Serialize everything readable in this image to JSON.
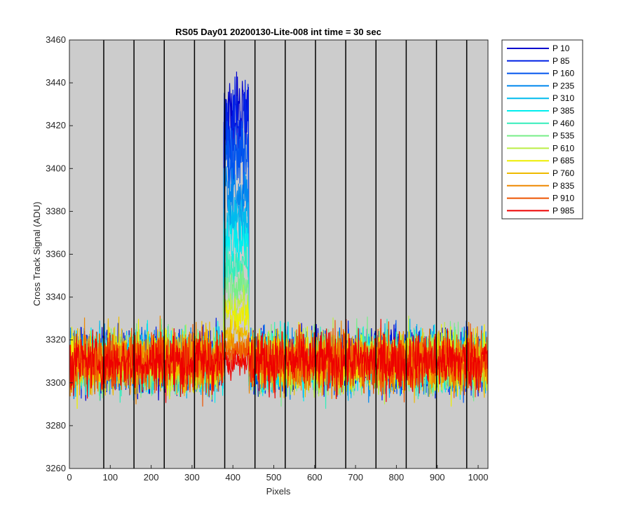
{
  "chart_data": {
    "type": "line",
    "title": "RS05 Day01 20200130-Lite-008 int time = 30 sec",
    "xlabel": "Pixels",
    "ylabel": "Cross Track Signal (ADU)",
    "xlim": [
      0,
      1024
    ],
    "ylim": [
      3260,
      3460
    ],
    "xticks": [
      0,
      100,
      200,
      300,
      400,
      500,
      600,
      700,
      800,
      900,
      1000
    ],
    "yticks": [
      3260,
      3280,
      3300,
      3320,
      3340,
      3360,
      3380,
      3400,
      3420,
      3440,
      3460
    ],
    "background": "#cccccc",
    "grid": false,
    "legend_position": "outside-top-right",
    "column_boundaries": [
      84,
      158,
      232,
      306,
      380,
      454,
      528,
      602,
      676,
      750,
      824,
      898,
      972
    ],
    "baseline_mean": 3310,
    "noise_range": [
      3276,
      3346
    ],
    "peak_region": [
      378,
      438
    ],
    "series": [
      {
        "name": "P 10",
        "color": "#0000cd",
        "peak": 3442
      },
      {
        "name": "P 85",
        "color": "#0022e6",
        "peak": 3440
      },
      {
        "name": "P 160",
        "color": "#0055ee",
        "peak": 3420
      },
      {
        "name": "P 235",
        "color": "#0088ee",
        "peak": 3400
      },
      {
        "name": "P 310",
        "color": "#00bbee",
        "peak": 3385
      },
      {
        "name": "P 385",
        "color": "#00eeee",
        "peak": 3375
      },
      {
        "name": "P 460",
        "color": "#33eebb",
        "peak": 3362
      },
      {
        "name": "P 535",
        "color": "#77ee88",
        "peak": 3350
      },
      {
        "name": "P 610",
        "color": "#bbee44",
        "peak": 3342
      },
      {
        "name": "P 685",
        "color": "#eeee00",
        "peak": 3335
      },
      {
        "name": "P 760",
        "color": "#eebb00",
        "peak": 3325
      },
      {
        "name": "P 835",
        "color": "#ee8800",
        "peak": 3318
      },
      {
        "name": "P 910",
        "color": "#ee5500",
        "peak": 3314
      },
      {
        "name": "P 985",
        "color": "#ee0000",
        "peak": 3310
      }
    ]
  }
}
